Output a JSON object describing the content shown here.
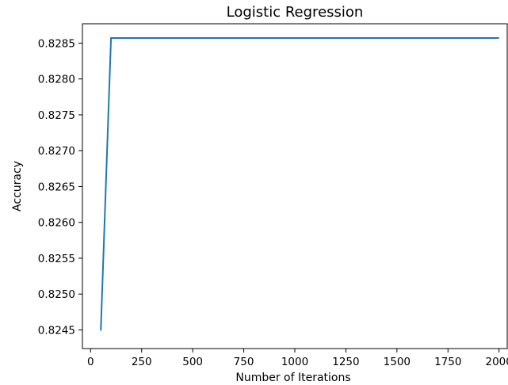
{
  "chart_data": {
    "type": "line",
    "title": "Logistic Regression",
    "xlabel": "Number of Iterations",
    "ylabel": "Accuracy",
    "xlim": [
      -40,
      2040
    ],
    "ylim": [
      0.82424,
      0.82877
    ],
    "x_ticks": [
      0,
      250,
      500,
      750,
      1000,
      1250,
      1500,
      1750,
      2000
    ],
    "y_ticks": [
      0.8245,
      0.825,
      0.8255,
      0.826,
      0.8265,
      0.827,
      0.8275,
      0.828,
      0.8285
    ],
    "x_tick_labels": [
      "0",
      "250",
      "500",
      "750",
      "1000",
      "1250",
      "1500",
      "1750",
      "2000"
    ],
    "y_tick_labels": [
      "0.8245",
      "0.8250",
      "0.8255",
      "0.8260",
      "0.8265",
      "0.8270",
      "0.8275",
      "0.8280",
      "0.8285"
    ],
    "grid": false,
    "series": [
      {
        "x": [
          50,
          100,
          2000
        ],
        "values": [
          0.82449,
          0.828571,
          0.828571
        ],
        "color": "#1f77b4"
      }
    ]
  }
}
